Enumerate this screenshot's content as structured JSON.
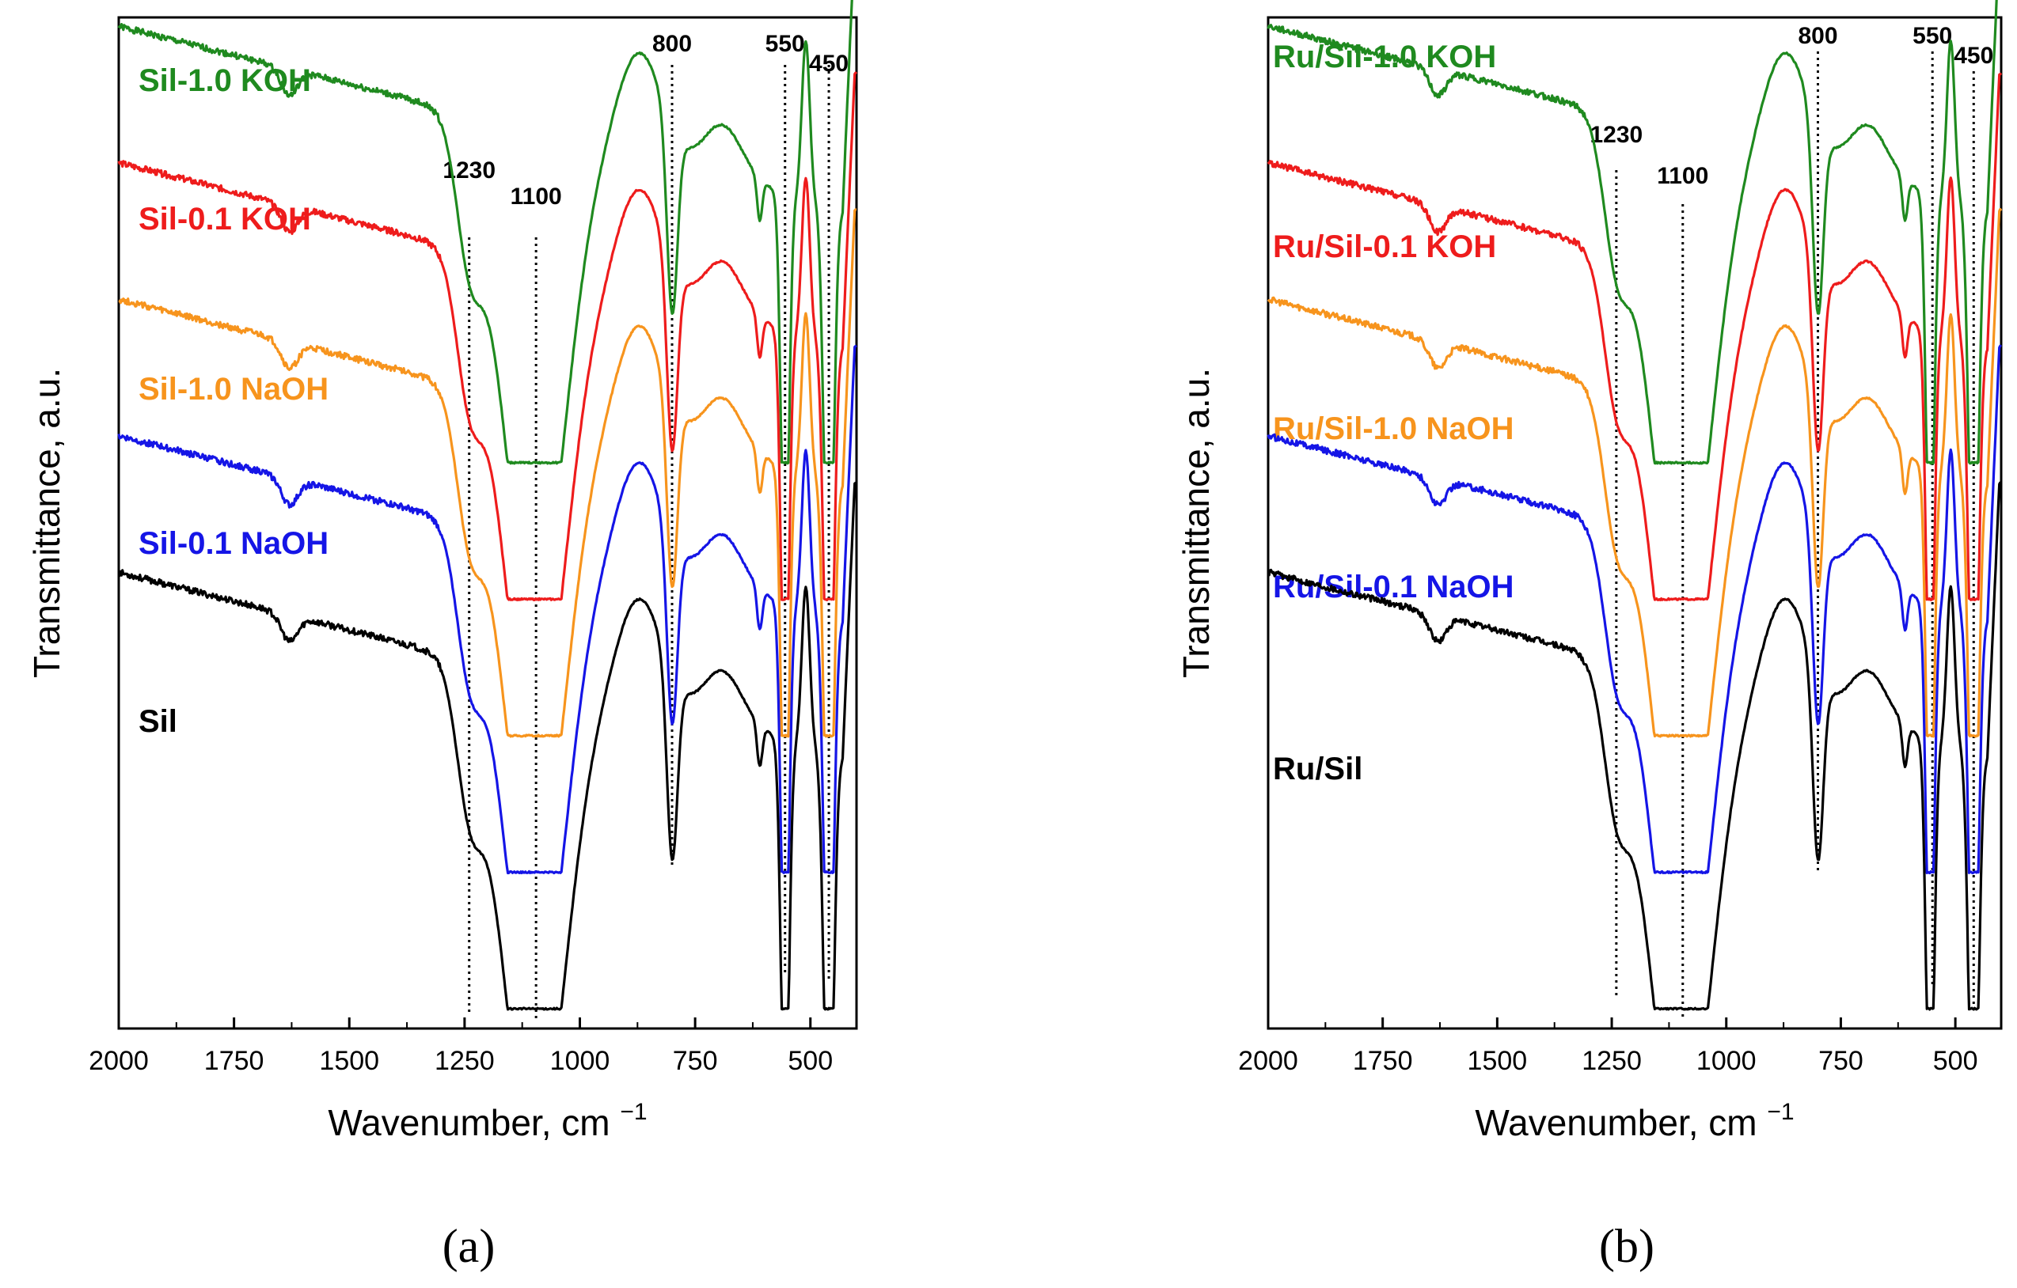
{
  "chart_data": [
    {
      "type": "line",
      "panel": "(a)",
      "xlabel": "Wavenumber, cm",
      "xlabel_superscript": "−1",
      "ylabel": "Transmittance, a.u.",
      "xlim": [
        2000,
        400
      ],
      "x_ticks": [
        2000,
        1750,
        1500,
        1250,
        1000,
        750,
        500
      ],
      "x_tick_labels": [
        "2000",
        "1750",
        "1500",
        "1250",
        "1000",
        "750",
        "500"
      ],
      "y_ticks": false,
      "reference_lines": [
        {
          "label": "1230",
          "x": 1240
        },
        {
          "label": "1100",
          "x": 1095
        },
        {
          "label": "800",
          "x": 800
        },
        {
          "label": "550",
          "x": 555
        },
        {
          "label": "450",
          "x": 460
        }
      ],
      "series": [
        {
          "name": "Sil-1.0 KOH",
          "color": "#1f8a1f",
          "offset": 4
        },
        {
          "name": "Sil-0.1 KOH",
          "color": "#ee1c1c",
          "offset": 3
        },
        {
          "name": "Sil-1.0 NaOH",
          "color": "#f7941d",
          "offset": 2
        },
        {
          "name": "Sil-0.1 NaOH",
          "color": "#1515e6",
          "offset": 1
        },
        {
          "name": "Sil",
          "color": "#000000",
          "offset": 0
        }
      ]
    },
    {
      "type": "line",
      "panel": "(b)",
      "xlabel": "Wavenumber, cm",
      "xlabel_superscript": "−1",
      "ylabel": "Transmittance, a.u.",
      "xlim": [
        2000,
        400
      ],
      "x_ticks": [
        2000,
        1750,
        1500,
        1250,
        1000,
        750,
        500
      ],
      "x_tick_labels": [
        "2000",
        "1750",
        "1500",
        "1250",
        "1000",
        "750",
        "500"
      ],
      "y_ticks": false,
      "reference_lines": [
        {
          "label": "1230",
          "x": 1240
        },
        {
          "label": "1100",
          "x": 1095
        },
        {
          "label": "800",
          "x": 800
        },
        {
          "label": "550",
          "x": 550
        },
        {
          "label": "450",
          "x": 460
        }
      ],
      "series": [
        {
          "name": "Ru/Sil-1.0 KOH",
          "color": "#1f8a1f",
          "offset": 4
        },
        {
          "name": "Ru/Sil-0.1 KOH",
          "color": "#ee1c1c",
          "offset": 3
        },
        {
          "name": "Ru/Sil-1.0 NaOH",
          "color": "#f7941d",
          "offset": 2
        },
        {
          "name": "Ru/Sil-0.1 NaOH",
          "color": "#1515e6",
          "offset": 1
        },
        {
          "name": "Ru/Sil",
          "color": "#000000",
          "offset": 0
        }
      ]
    }
  ]
}
